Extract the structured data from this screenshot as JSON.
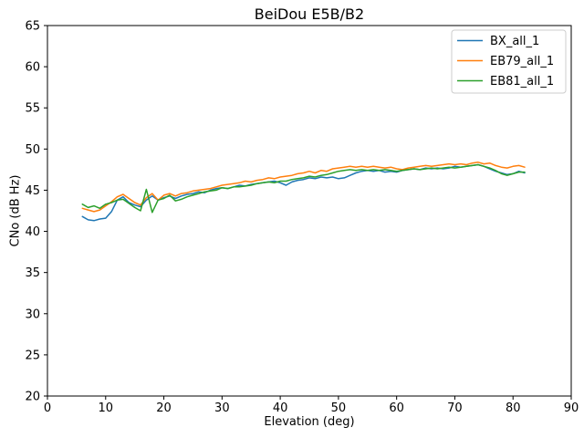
{
  "figure": {
    "background_color": "#ffffff",
    "text_color": "#000000",
    "spine_color": "#000000",
    "legend_border_color": "#cccccc"
  },
  "chart_data": {
    "type": "line",
    "title": "BeiDou E5B/B2",
    "xlabel": "Elevation (deg)",
    "ylabel": "CNo (dB Hz)",
    "xlim": [
      0,
      90
    ],
    "ylim": [
      20,
      65
    ],
    "xticks": [
      0,
      10,
      20,
      30,
      40,
      50,
      60,
      70,
      80,
      90
    ],
    "yticks": [
      20,
      25,
      30,
      35,
      40,
      45,
      50,
      55,
      60,
      65
    ],
    "grid": false,
    "legend_position": "upper right",
    "x": [
      6,
      7,
      8,
      9,
      10,
      11,
      12,
      13,
      14,
      15,
      16,
      17,
      18,
      19,
      20,
      21,
      22,
      23,
      24,
      25,
      26,
      27,
      28,
      29,
      30,
      31,
      32,
      33,
      34,
      35,
      36,
      37,
      38,
      39,
      40,
      41,
      42,
      43,
      44,
      45,
      46,
      47,
      48,
      49,
      50,
      51,
      52,
      53,
      54,
      55,
      56,
      57,
      58,
      59,
      60,
      61,
      62,
      63,
      64,
      65,
      66,
      67,
      68,
      69,
      70,
      71,
      72,
      73,
      74,
      75,
      76,
      77,
      78,
      79,
      80,
      81,
      82
    ],
    "series": [
      {
        "name": "BX_all_1",
        "color": "#1f77b4",
        "values": [
          41.8,
          41.4,
          41.3,
          41.5,
          41.6,
          42.4,
          43.8,
          44.2,
          43.5,
          43.2,
          43.0,
          43.8,
          44.3,
          43.8,
          44.1,
          44.3,
          44.0,
          44.3,
          44.5,
          44.6,
          44.8,
          44.7,
          45.0,
          45.2,
          45.3,
          45.2,
          45.4,
          45.6,
          45.5,
          45.7,
          45.8,
          45.9,
          46.0,
          46.1,
          45.9,
          45.6,
          46.0,
          46.2,
          46.3,
          46.5,
          46.4,
          46.6,
          46.5,
          46.6,
          46.4,
          46.5,
          46.8,
          47.1,
          47.3,
          47.4,
          47.3,
          47.4,
          47.2,
          47.3,
          47.2,
          47.4,
          47.5,
          47.6,
          47.5,
          47.7,
          47.6,
          47.7,
          47.6,
          47.7,
          47.9,
          47.8,
          47.9,
          48.0,
          48.1,
          47.9,
          47.6,
          47.3,
          47.1,
          46.9,
          47.0,
          47.3,
          47.1
        ]
      },
      {
        "name": "EB79_all_1",
        "color": "#ff7f0e",
        "values": [
          42.8,
          42.6,
          42.4,
          42.6,
          43.1,
          43.6,
          44.2,
          44.5,
          44.0,
          43.5,
          43.2,
          44.1,
          44.6,
          43.8,
          44.4,
          44.6,
          44.3,
          44.6,
          44.7,
          44.9,
          45.0,
          45.1,
          45.2,
          45.4,
          45.6,
          45.7,
          45.8,
          45.9,
          46.1,
          46.0,
          46.2,
          46.3,
          46.5,
          46.4,
          46.6,
          46.7,
          46.8,
          47.0,
          47.1,
          47.3,
          47.1,
          47.4,
          47.3,
          47.6,
          47.7,
          47.8,
          47.9,
          47.8,
          47.9,
          47.8,
          47.9,
          47.8,
          47.7,
          47.8,
          47.6,
          47.5,
          47.7,
          47.8,
          47.9,
          48.0,
          47.9,
          48.0,
          48.1,
          48.2,
          48.1,
          48.2,
          48.1,
          48.3,
          48.4,
          48.2,
          48.3,
          48.0,
          47.8,
          47.7,
          47.9,
          48.0,
          47.8
        ]
      },
      {
        "name": "EB81_all_1",
        "color": "#2ca02c",
        "values": [
          43.3,
          42.9,
          43.1,
          42.8,
          43.3,
          43.5,
          43.8,
          43.9,
          43.4,
          42.9,
          42.5,
          45.1,
          42.3,
          43.8,
          44.0,
          44.4,
          43.7,
          43.9,
          44.2,
          44.4,
          44.6,
          44.8,
          44.9,
          45.0,
          45.3,
          45.2,
          45.4,
          45.4,
          45.5,
          45.6,
          45.8,
          45.9,
          46.0,
          45.9,
          46.1,
          46.1,
          46.3,
          46.4,
          46.5,
          46.7,
          46.6,
          46.8,
          46.9,
          47.1,
          47.3,
          47.4,
          47.5,
          47.4,
          47.5,
          47.4,
          47.5,
          47.4,
          47.5,
          47.4,
          47.3,
          47.4,
          47.5,
          47.6,
          47.5,
          47.6,
          47.7,
          47.6,
          47.7,
          47.8,
          47.7,
          47.8,
          47.9,
          48.0,
          48.1,
          47.9,
          47.7,
          47.4,
          47.0,
          46.8,
          47.0,
          47.2,
          47.2
        ]
      }
    ]
  }
}
